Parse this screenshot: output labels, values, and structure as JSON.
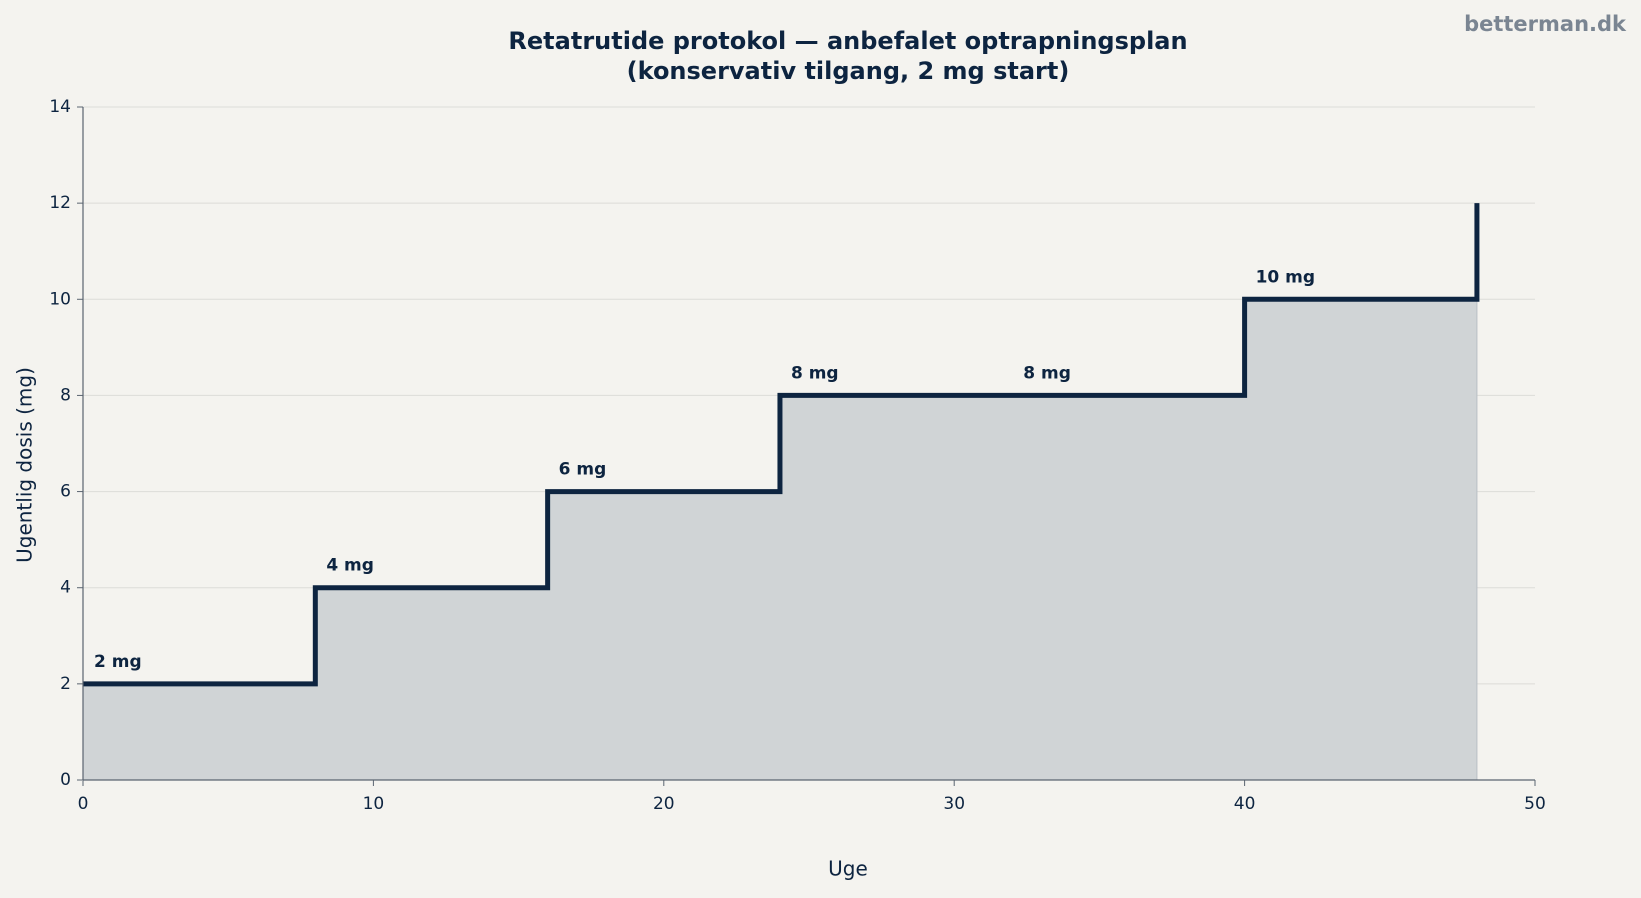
{
  "chart_data": {
    "type": "line",
    "step": "post",
    "title": "Retatrutide protokol — anbefalet optrapningsplan",
    "subtitle": "(konservativ tilgang, 2 mg start)",
    "watermark": "betterman.dk",
    "x_label": "Uge",
    "y_label": "Ugentlig dosis (mg)",
    "x": [
      0,
      8,
      16,
      24,
      32,
      40,
      48
    ],
    "series": [
      {
        "color": "#0d2440",
        "fill": "#d0d4d6",
        "values": [
          2,
          4,
          6,
          8,
          8,
          10,
          12
        ],
        "value_labels": [
          "2 mg",
          "4 mg",
          "6 mg",
          "8 mg",
          "8 mg",
          "10 mg",
          null
        ]
      }
    ],
    "xlim": [
      0,
      50
    ],
    "xticks": [
      0,
      10,
      20,
      30,
      40,
      50
    ],
    "ylim": [
      0,
      14
    ],
    "yticks": [
      0,
      2,
      4,
      6,
      8,
      10,
      12,
      14
    ],
    "grid": true
  }
}
